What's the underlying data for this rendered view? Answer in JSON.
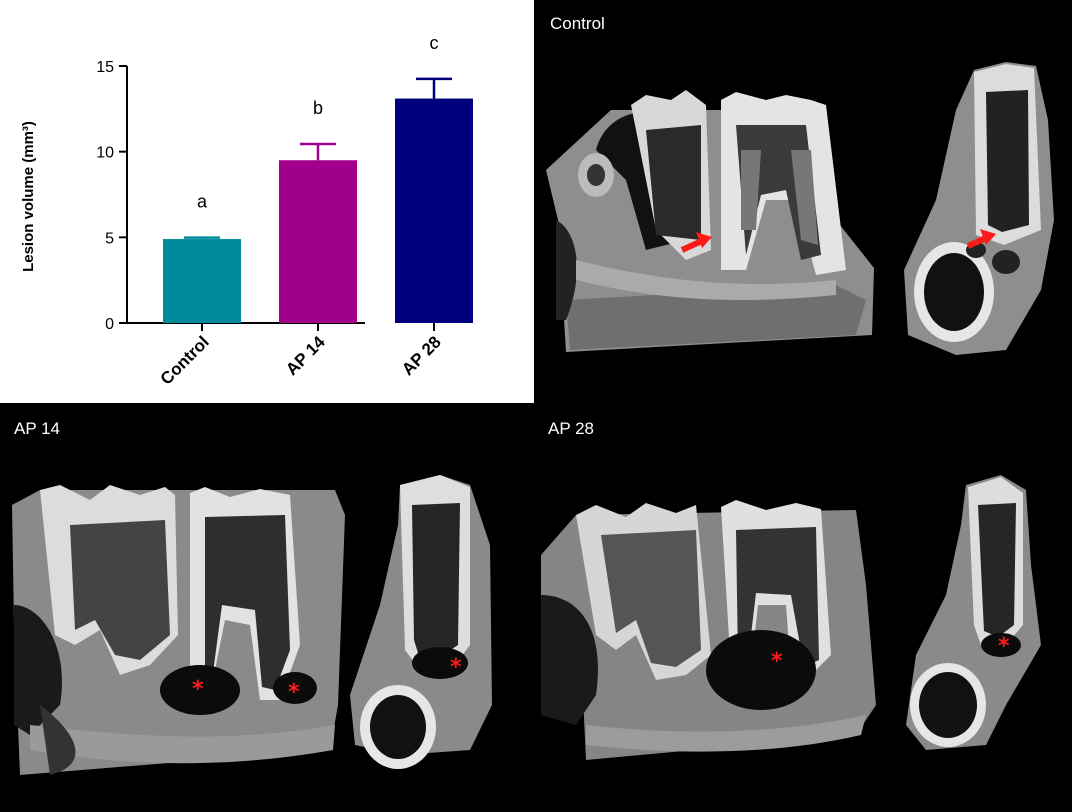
{
  "chart_data": {
    "type": "bar",
    "categories": [
      "Control",
      "AP 14",
      "AP 28"
    ],
    "values": [
      4.9,
      9.5,
      13.1
    ],
    "errors": [
      0.08,
      0.95,
      1.15
    ],
    "significance_letters": [
      "a",
      "b",
      "c"
    ],
    "colors": [
      "#008b9c",
      "#a0008a",
      "#00007d"
    ],
    "ylabel": "Lesion volume (mm³)",
    "ylim": [
      0,
      15
    ],
    "yticks": [
      0,
      5,
      10,
      15
    ],
    "grid": false
  },
  "panels": {
    "control": {
      "title": "Control"
    },
    "ap14": {
      "title": "AP 14"
    },
    "ap28": {
      "title": "AP 28"
    }
  }
}
